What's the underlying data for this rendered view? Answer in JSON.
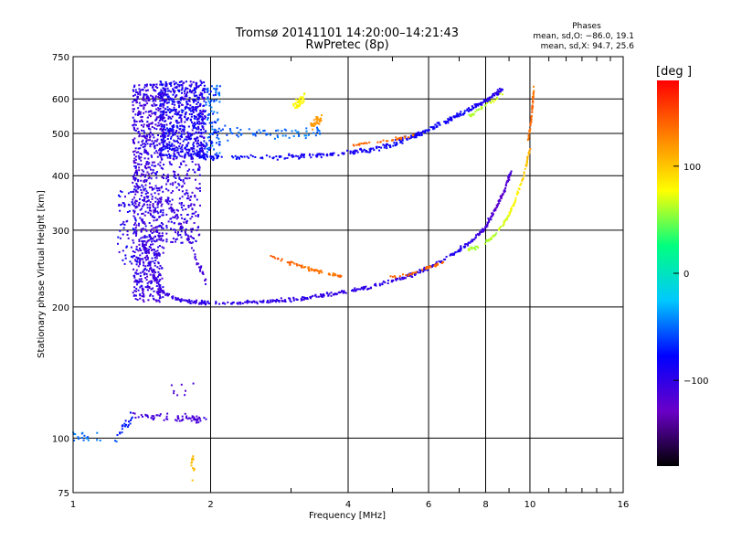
{
  "chart_data": {
    "type": "scatter",
    "title": "Tromsø 20141101 14:20:00–14:21:43",
    "subtitle": "RwPretec (8p)",
    "xlabel": "Frequency [MHz]",
    "ylabel": "Stationary phase Virtual Height [km]",
    "x_scale": "log",
    "y_scale": "log",
    "xlim": [
      1,
      16
    ],
    "ylim": [
      75,
      750
    ],
    "x_ticks": [
      1,
      2,
      4,
      6,
      8,
      10,
      16
    ],
    "x_tick_labels": [
      "1",
      "2",
      "4",
      "6",
      "8",
      "10",
      "16"
    ],
    "y_ticks": [
      75,
      100,
      200,
      300,
      400,
      500,
      600,
      750
    ],
    "y_tick_labels": [
      "75",
      "100",
      "200",
      "300",
      "400",
      "500",
      "600",
      "750"
    ],
    "grid": true,
    "phases_legend": {
      "title": "Phases",
      "line1": "mean, sd,O: −86.0, 19.1",
      "line2": "mean, sd,X:  94.7, 25.6"
    },
    "colorbar": {
      "label": "[deg",
      "range": [
        -180,
        180
      ],
      "ticks": [
        100,
        0,
        -100
      ],
      "tick_labels": [
        "100",
        "0",
        "−100"
      ],
      "colors": [
        "#000000",
        "#6a00c8",
        "#0000ff",
        "#00c8ff",
        "#00ff80",
        "#ffff00",
        "#ff8000",
        "#ff0000"
      ]
    },
    "series": [
      {
        "traces": [
          {
            "f": [
              1.42,
              1.5,
              1.58,
              1.7,
              1.85,
              2.0,
              2.3,
              2.7,
              3.1,
              3.5,
              4.0,
              4.6,
              5.2,
              5.8,
              6.4,
              7.0,
              7.5,
              8.0,
              8.4,
              8.8,
              9.1
            ],
            "h": [
              280,
              235,
              215,
              208,
              205,
              204,
              204,
              206,
              208,
              212,
              217,
              224,
              232,
              242,
              255,
              270,
              285,
              305,
              335,
              370,
              410
            ],
            "phase": [
              -110,
              -110,
              -105,
              -100,
              -100,
              -100,
              -100,
              -100,
              -100,
              -100,
              -100,
              -100,
              -100,
              -95,
              -95,
              -90,
              -100,
              -110,
              -120,
              -120,
              -110
            ],
            "n": 520,
            "spread": 0.015
          },
          {
            "f": [
              1.6,
              1.75,
              1.85,
              1.95
            ],
            "h": [
              350,
              300,
              260,
              230
            ],
            "phase": [
              -110,
              -110,
              -110,
              -110
            ],
            "n": 60,
            "spread": 0.03
          },
          {
            "f": [
              2.7,
              3.0,
              3.3,
              3.6,
              3.9
            ],
            "h": [
              262,
              252,
              244,
              238,
              234
            ],
            "phase": [
              145,
              140,
              135,
              135,
              135
            ],
            "n": 70,
            "spread": 0.012
          },
          {
            "f": [
              4.9,
              5.5,
              6.0,
              6.5
            ],
            "h": [
              234,
              238,
              246,
              254
            ],
            "phase": [
              140,
              140,
              140,
              140
            ],
            "n": 40,
            "spread": 0.012
          },
          {
            "f": [
              7.3,
              7.9,
              8.4,
              8.9,
              9.3,
              9.7,
              10.0
            ],
            "h": [
              270,
              278,
              292,
              318,
              350,
              400,
              460
            ],
            "phase": [
              60,
              60,
              65,
              70,
              80,
              95,
              110
            ],
            "n": 110,
            "spread": 0.015
          },
          {
            "f": [
              9.9,
              10.05,
              10.15,
              10.2
            ],
            "h": [
              480,
              530,
              590,
              640
            ],
            "phase": [
              130,
              140,
              140,
              130
            ],
            "n": 45,
            "spread": 0.01
          },
          {
            "f": [
              1.85,
              2.1,
              2.5,
              3.0,
              3.5,
              4.0,
              4.5,
              5.0,
              5.5,
              6.0,
              6.6,
              7.2,
              7.8,
              8.3,
              8.7
            ],
            "h": [
              445,
              440,
              440,
              442,
              446,
              452,
              460,
              472,
              490,
              510,
              535,
              560,
              585,
              610,
              630
            ],
            "phase": [
              -80,
              -75,
              -80,
              -85,
              -85,
              -85,
              -85,
              -80,
              -85,
              -80,
              -85,
              -80,
              -90,
              -95,
              -95
            ],
            "n": 360,
            "spread": 0.02
          },
          {
            "f": [
              4.0,
              4.4,
              4.8,
              5.2,
              5.6
            ],
            "h": [
              470,
              475,
              480,
              488,
              497
            ],
            "phase": [
              140,
              140,
              140,
              135,
              135
            ],
            "n": 35,
            "spread": 0.01
          },
          {
            "f": [
              7.3,
              7.8,
              8.3,
              8.8
            ],
            "h": [
              545,
              570,
              595,
              620
            ],
            "phase": [
              60,
              60,
              65,
              70
            ],
            "n": 30,
            "spread": 0.015
          },
          {
            "f": [
              2.0,
              2.3,
              2.7,
              3.1,
              3.5
            ],
            "h": [
              500,
              500,
              500,
              498,
              496
            ],
            "phase": [
              -60,
              -50,
              -55,
              -45,
              -50
            ],
            "n": 70,
            "spread": 0.05
          },
          {
            "f": [
              3.05,
              3.2
            ],
            "h": [
              580,
              600
            ],
            "phase": [
              80,
              80
            ],
            "n": 40,
            "spread": 0.04
          },
          {
            "f": [
              3.3,
              3.5
            ],
            "h": [
              520,
              540
            ],
            "phase": [
              120,
              120
            ],
            "n": 30,
            "spread": 0.04
          },
          {
            "f": [
              1.25,
              1.35
            ],
            "h": [
              100,
              112
            ],
            "phase": [
              -70,
              -70
            ],
            "n": 20,
            "spread": 0.05
          },
          {
            "f": [
              1.35,
              1.5,
              1.65,
              1.8,
              1.95
            ],
            "h": [
              113,
              112,
              111,
              111,
              110
            ],
            "phase": [
              -110,
              -110,
              -110,
              -115,
              -110
            ],
            "n": 70,
            "spread": 0.03
          }
        ]
      },
      {
        "clouds": [
          {
            "f0": 1.35,
            "f1": 1.58,
            "h0": 205,
            "h1": 650,
            "phase": [
              -120,
              -90
            ],
            "n": 900
          },
          {
            "f0": 1.55,
            "f1": 1.95,
            "h0": 440,
            "h1": 660,
            "phase": [
              -110,
              -70
            ],
            "n": 700
          },
          {
            "f0": 1.95,
            "f1": 2.1,
            "h0": 450,
            "h1": 650,
            "phase": [
              -80,
              -40
            ],
            "n": 90
          },
          {
            "f0": 1.6,
            "f1": 1.9,
            "h0": 280,
            "h1": 440,
            "phase": [
              -115,
              -90
            ],
            "n": 200
          },
          {
            "f0": 1.25,
            "f1": 1.4,
            "h0": 250,
            "h1": 380,
            "phase": [
              -110,
              -70
            ],
            "n": 60
          },
          {
            "f0": 1.0,
            "f1": 1.25,
            "h0": 98,
            "h1": 103,
            "phase": [
              -60,
              -40
            ],
            "n": 20
          },
          {
            "f0": 1.8,
            "f1": 1.85,
            "h0": 80,
            "h1": 92,
            "phase": [
              100,
              110
            ],
            "n": 12
          },
          {
            "f0": 1.6,
            "f1": 1.85,
            "h0": 125,
            "h1": 135,
            "phase": [
              -120,
              -110
            ],
            "n": 8
          }
        ]
      }
    ]
  }
}
